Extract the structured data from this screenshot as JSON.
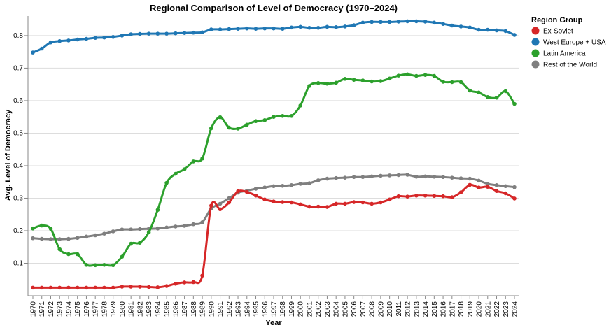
{
  "chart_data": {
    "type": "line",
    "title": "Regional Comparison of Level of Democracy (1970–2024)",
    "xlabel": "Year",
    "ylabel": "Avg. Level of Democracy",
    "ylim": [
      0,
      0.86
    ],
    "y_ticks": [
      0.1,
      0.2,
      0.3,
      0.4,
      0.5,
      0.6,
      0.7,
      0.8
    ],
    "grid": true,
    "legend_title": "Region Group",
    "legend_position": "right",
    "x": [
      1970,
      1971,
      1972,
      1973,
      1974,
      1975,
      1976,
      1977,
      1978,
      1979,
      1980,
      1981,
      1982,
      1983,
      1984,
      1985,
      1986,
      1987,
      1988,
      1989,
      1990,
      1991,
      1992,
      1993,
      1994,
      1995,
      1996,
      1997,
      1998,
      1999,
      2000,
      2001,
      2002,
      2003,
      2004,
      2005,
      2006,
      2007,
      2008,
      2009,
      2010,
      2011,
      2012,
      2013,
      2014,
      2015,
      2016,
      2017,
      2018,
      2019,
      2020,
      2021,
      2022,
      2023,
      2024
    ],
    "series": [
      {
        "name": "Ex-Soviet",
        "color": "#d62728",
        "values": [
          0.025,
          0.025,
          0.025,
          0.025,
          0.025,
          0.025,
          0.025,
          0.025,
          0.025,
          0.025,
          0.028,
          0.028,
          0.028,
          0.027,
          0.026,
          0.03,
          0.037,
          0.041,
          0.042,
          0.062,
          0.277,
          0.266,
          0.287,
          0.321,
          0.319,
          0.308,
          0.296,
          0.29,
          0.288,
          0.287,
          0.281,
          0.274,
          0.274,
          0.273,
          0.283,
          0.283,
          0.288,
          0.287,
          0.283,
          0.287,
          0.296,
          0.306,
          0.305,
          0.308,
          0.308,
          0.307,
          0.306,
          0.303,
          0.318,
          0.341,
          0.333,
          0.335,
          0.322,
          0.315,
          0.299
        ]
      },
      {
        "name": "West Europe + USA",
        "color": "#1f77b4",
        "values": [
          0.748,
          0.76,
          0.779,
          0.783,
          0.785,
          0.788,
          0.79,
          0.793,
          0.794,
          0.796,
          0.8,
          0.804,
          0.805,
          0.806,
          0.806,
          0.806,
          0.807,
          0.808,
          0.809,
          0.81,
          0.819,
          0.819,
          0.82,
          0.821,
          0.822,
          0.821,
          0.822,
          0.822,
          0.821,
          0.825,
          0.827,
          0.824,
          0.824,
          0.827,
          0.826,
          0.828,
          0.832,
          0.84,
          0.842,
          0.842,
          0.842,
          0.843,
          0.844,
          0.844,
          0.843,
          0.84,
          0.836,
          0.831,
          0.828,
          0.825,
          0.818,
          0.818,
          0.816,
          0.814,
          0.802
        ]
      },
      {
        "name": "Latin America",
        "color": "#2ca02c",
        "values": [
          0.207,
          0.216,
          0.206,
          0.143,
          0.128,
          0.128,
          0.095,
          0.094,
          0.095,
          0.094,
          0.12,
          0.16,
          0.163,
          0.195,
          0.264,
          0.347,
          0.375,
          0.389,
          0.413,
          0.422,
          0.515,
          0.549,
          0.517,
          0.514,
          0.526,
          0.537,
          0.54,
          0.55,
          0.553,
          0.553,
          0.585,
          0.645,
          0.654,
          0.652,
          0.655,
          0.667,
          0.664,
          0.662,
          0.659,
          0.66,
          0.668,
          0.677,
          0.681,
          0.676,
          0.679,
          0.676,
          0.658,
          0.657,
          0.657,
          0.631,
          0.625,
          0.611,
          0.609,
          0.629,
          0.59
        ]
      },
      {
        "name": "Rest of the World",
        "color": "#7f7f7f",
        "values": [
          0.177,
          0.175,
          0.174,
          0.174,
          0.175,
          0.178,
          0.182,
          0.186,
          0.191,
          0.198,
          0.204,
          0.204,
          0.205,
          0.206,
          0.207,
          0.21,
          0.213,
          0.215,
          0.22,
          0.226,
          0.268,
          0.283,
          0.3,
          0.317,
          0.323,
          0.329,
          0.333,
          0.337,
          0.338,
          0.34,
          0.344,
          0.346,
          0.355,
          0.36,
          0.362,
          0.363,
          0.365,
          0.365,
          0.367,
          0.369,
          0.37,
          0.371,
          0.372,
          0.366,
          0.367,
          0.366,
          0.365,
          0.363,
          0.361,
          0.36,
          0.354,
          0.344,
          0.34,
          0.337,
          0.334
        ]
      }
    ]
  }
}
